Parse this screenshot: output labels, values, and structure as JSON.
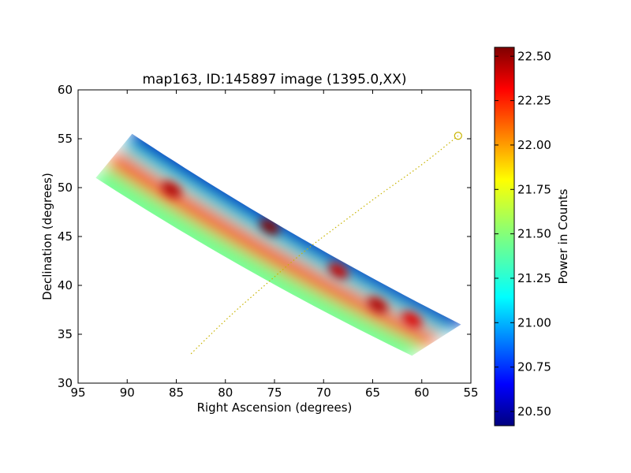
{
  "chart_data": {
    "type": "heatmap",
    "title": "map163, ID:145897 image (1395.0,XX)",
    "xlabel": "Right Ascension (degrees)",
    "ylabel": "Declination (degrees)",
    "xlim": [
      95,
      55
    ],
    "ylim": [
      30,
      60
    ],
    "x_ticks": [
      95,
      90,
      85,
      80,
      75,
      70,
      65,
      60,
      55
    ],
    "y_ticks": [
      30,
      35,
      40,
      45,
      50,
      55,
      60
    ],
    "x_tick_labels": [
      "95",
      "90",
      "85",
      "80",
      "75",
      "70",
      "65",
      "60",
      "55"
    ],
    "y_tick_labels": [
      "30",
      "35",
      "40",
      "45",
      "50",
      "55",
      "60"
    ],
    "colorbar": {
      "label": "Power in Counts",
      "colormap": "jet",
      "range": [
        20.42,
        22.55
      ],
      "ticks": [
        20.5,
        20.75,
        21.0,
        21.25,
        21.5,
        21.75,
        22.0,
        22.25,
        22.5
      ],
      "tick_labels": [
        "20.50",
        "20.75",
        "21.00",
        "21.25",
        "21.50",
        "21.75",
        "22.00",
        "22.25",
        "22.50"
      ]
    },
    "map_region": {
      "corners": [
        {
          "ra": 89.5,
          "dec": 55.5
        },
        {
          "ra": 56.0,
          "dec": 36.0
        },
        {
          "ra": 61.0,
          "dec": 32.8
        },
        {
          "ra": 93.2,
          "dec": 51.0
        }
      ],
      "edge_values": {
        "top_edge": 20.55,
        "bottom_edge": 21.45
      },
      "ridge": {
        "points": [
          {
            "ra": 92.0,
            "dec": 51.8,
            "value": 21.95
          },
          {
            "ra": 86.0,
            "dec": 49.8,
            "value": 22.3
          },
          {
            "ra": 80.0,
            "dec": 47.2,
            "value": 22.1
          },
          {
            "ra": 75.5,
            "dec": 46.0,
            "value": 22.5
          },
          {
            "ra": 68.5,
            "dec": 41.5,
            "value": 22.3
          },
          {
            "ra": 64.5,
            "dec": 38.0,
            "value": 22.35
          },
          {
            "ra": 60.5,
            "dec": 36.5,
            "value": 22.25
          }
        ]
      },
      "hot_spots": [
        {
          "ra": 85.5,
          "dec": 49.8,
          "value": 22.45
        },
        {
          "ra": 75.5,
          "dec": 46.0,
          "value": 22.55
        },
        {
          "ra": 68.5,
          "dec": 41.5,
          "value": 22.4
        },
        {
          "ra": 64.5,
          "dec": 38.0,
          "value": 22.45
        },
        {
          "ra": 61.0,
          "dec": 36.5,
          "value": 22.35
        }
      ]
    },
    "track": {
      "color": "#c8b400",
      "style": "dotted",
      "points": [
        {
          "ra": 83.5,
          "dec": 33.0
        },
        {
          "ra": 80.0,
          "dec": 36.5
        },
        {
          "ra": 76.0,
          "dec": 40.0
        },
        {
          "ra": 72.0,
          "dec": 43.5
        },
        {
          "ra": 68.0,
          "dec": 46.5
        },
        {
          "ra": 64.0,
          "dec": 49.5
        },
        {
          "ra": 60.0,
          "dec": 52.3
        },
        {
          "ra": 56.3,
          "dec": 55.3
        }
      ],
      "end_marker": {
        "ra": 56.3,
        "dec": 55.3,
        "shape": "circle",
        "fill": "none"
      }
    },
    "grid": false,
    "legend": "none"
  }
}
